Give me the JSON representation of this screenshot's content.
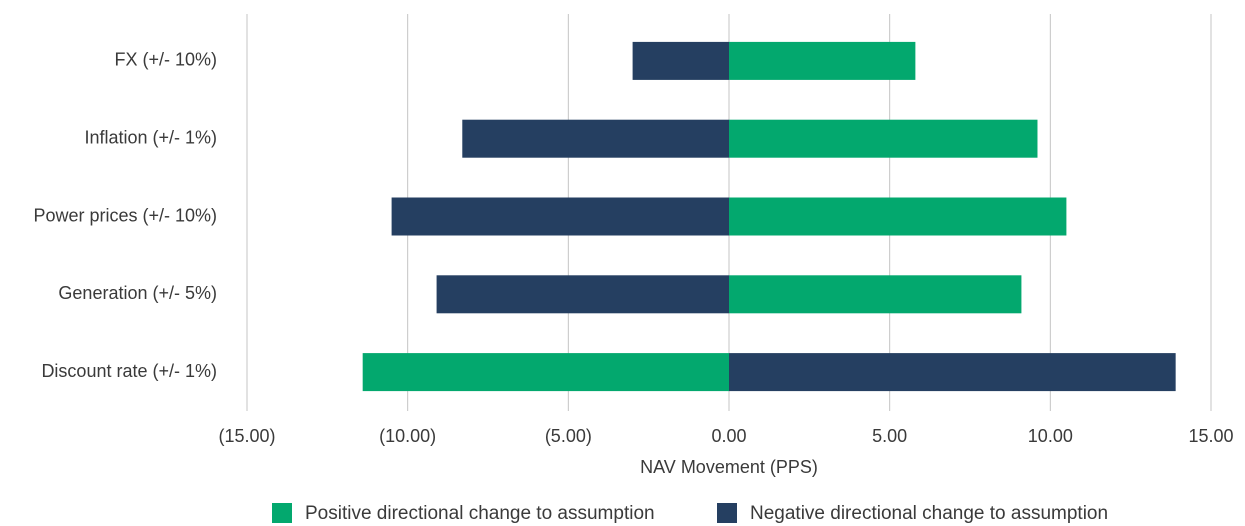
{
  "chart_data": {
    "type": "bar",
    "orientation": "horizontal",
    "x_label": "NAV Movement (PPS)",
    "categories": [
      "FX (+/- 10%)",
      "Inflation (+/- 1%)",
      "Power prices (+/- 10%)",
      "Generation (+/- 5%)",
      "Discount rate (+/- 1%)"
    ],
    "series": [
      {
        "name": "Positive directional change to assumption",
        "color": "#03a86e",
        "values": [
          5.8,
          9.6,
          10.5,
          9.1,
          -11.4
        ]
      },
      {
        "name": "Negative directional change to assumption",
        "color": "#253f61",
        "values": [
          -3.0,
          -8.3,
          -10.5,
          -9.1,
          13.9
        ]
      }
    ],
    "stacked": true,
    "xlim": [
      -15,
      15
    ],
    "xticks": [
      {
        "value": -15,
        "label": "(15.00)"
      },
      {
        "value": -10,
        "label": "(10.00)"
      },
      {
        "value": -5,
        "label": "(5.00)"
      },
      {
        "value": 0,
        "label": "0.00"
      },
      {
        "value": 5,
        "label": "5.00"
      },
      {
        "value": 10,
        "label": "10.00"
      },
      {
        "value": 15,
        "label": "15.00"
      }
    ],
    "grid": true,
    "legend": "bottom"
  }
}
